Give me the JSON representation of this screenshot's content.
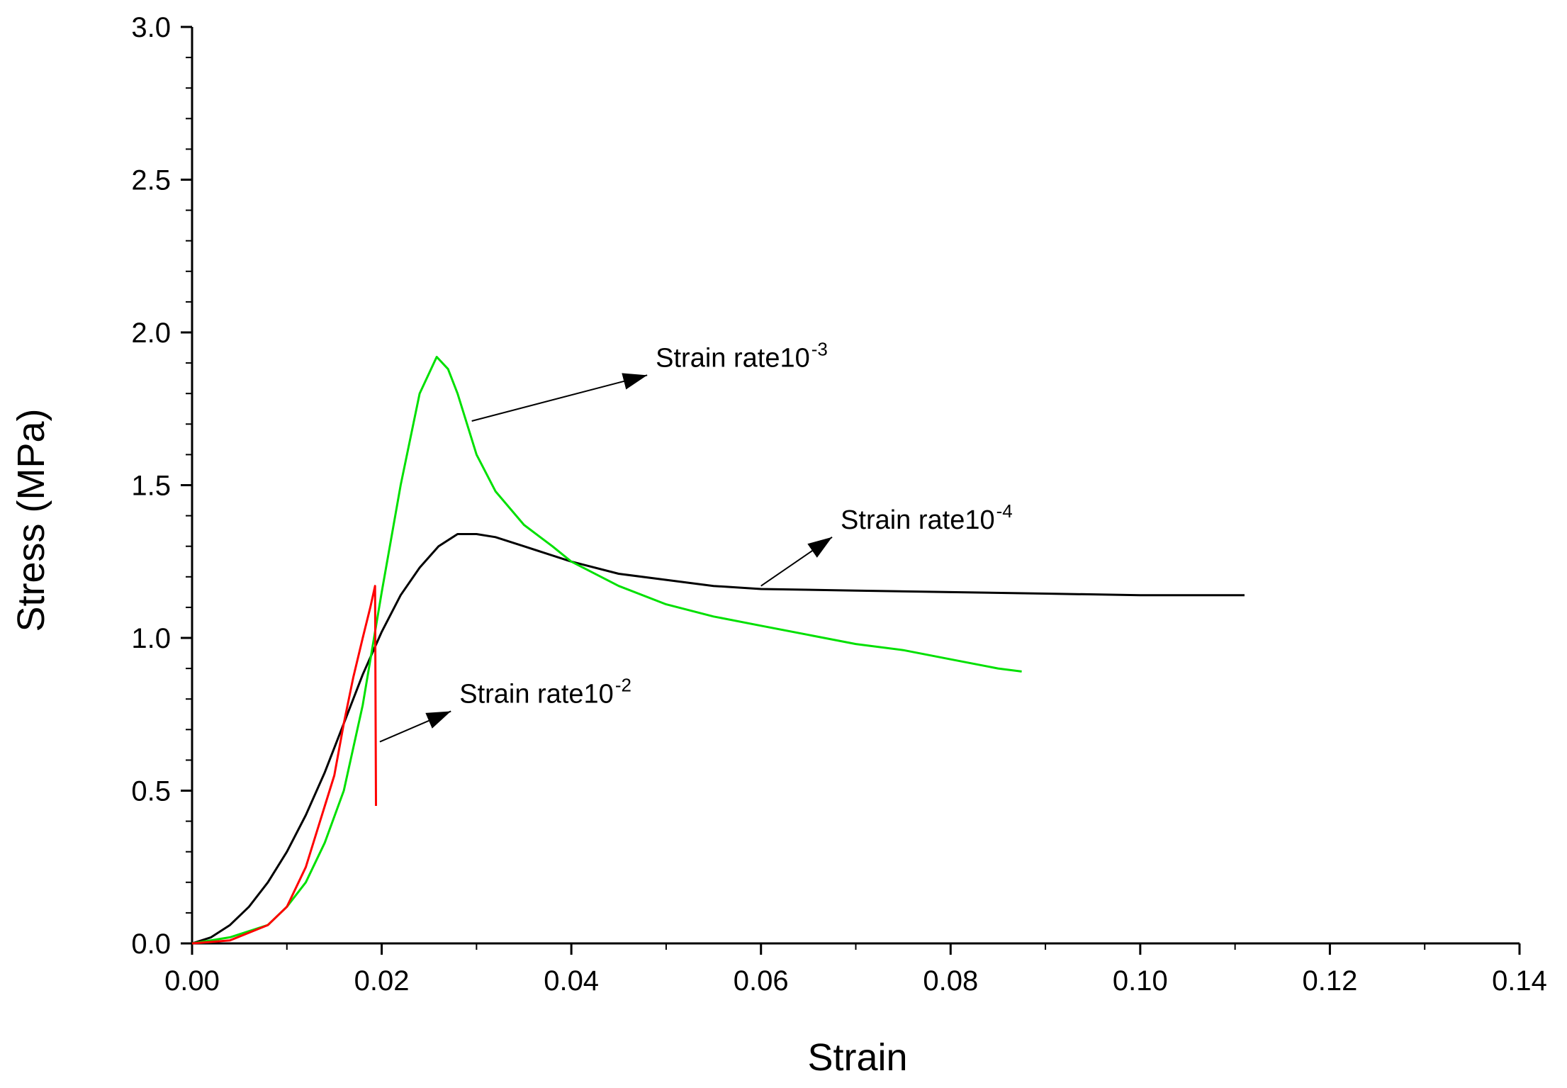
{
  "chart_data": {
    "type": "line",
    "title": "",
    "xlabel": "Strain",
    "ylabel": "Stress (MPa)",
    "xlim": [
      0,
      0.14
    ],
    "ylim": [
      0,
      3.0
    ],
    "grid": false,
    "x_ticks": [
      "0.00",
      "0.02",
      "0.04",
      "0.06",
      "0.08",
      "0.10",
      "0.12",
      "0.14"
    ],
    "y_ticks": [
      "0.0",
      "0.5",
      "1.0",
      "1.5",
      "2.0",
      "2.5",
      "3.0"
    ],
    "x_tick_values": [
      0,
      0.02,
      0.04,
      0.06,
      0.08,
      0.1,
      0.12,
      0.14
    ],
    "y_tick_values": [
      0,
      0.5,
      1.0,
      1.5,
      2.0,
      2.5,
      3.0
    ],
    "series": [
      {
        "color": "#ff0000",
        "points": [
          [
            0,
            0
          ],
          [
            0.004,
            0.01
          ],
          [
            0.008,
            0.06
          ],
          [
            0.01,
            0.12
          ],
          [
            0.012,
            0.25
          ],
          [
            0.014,
            0.45
          ],
          [
            0.015,
            0.55
          ],
          [
            0.016,
            0.72
          ],
          [
            0.017,
            0.87
          ],
          [
            0.018,
            1.0
          ],
          [
            0.0188,
            1.1
          ],
          [
            0.0193,
            1.17
          ],
          [
            0.0194,
            0.45
          ]
        ]
      },
      {
        "color": "#00e000",
        "points": [
          [
            0,
            0
          ],
          [
            0.004,
            0.02
          ],
          [
            0.008,
            0.06
          ],
          [
            0.01,
            0.12
          ],
          [
            0.012,
            0.2
          ],
          [
            0.014,
            0.33
          ],
          [
            0.016,
            0.5
          ],
          [
            0.018,
            0.78
          ],
          [
            0.02,
            1.15
          ],
          [
            0.022,
            1.5
          ],
          [
            0.024,
            1.8
          ],
          [
            0.0258,
            1.92
          ],
          [
            0.027,
            1.88
          ],
          [
            0.028,
            1.8
          ],
          [
            0.03,
            1.6
          ],
          [
            0.032,
            1.48
          ],
          [
            0.035,
            1.37
          ],
          [
            0.038,
            1.3
          ],
          [
            0.04,
            1.25
          ],
          [
            0.045,
            1.17
          ],
          [
            0.05,
            1.11
          ],
          [
            0.055,
            1.07
          ],
          [
            0.06,
            1.04
          ],
          [
            0.065,
            1.01
          ],
          [
            0.07,
            0.98
          ],
          [
            0.075,
            0.96
          ],
          [
            0.08,
            0.93
          ],
          [
            0.085,
            0.9
          ],
          [
            0.0875,
            0.89
          ]
        ]
      },
      {
        "color": "#000000",
        "points": [
          [
            0,
            0
          ],
          [
            0.002,
            0.02
          ],
          [
            0.004,
            0.06
          ],
          [
            0.006,
            0.12
          ],
          [
            0.008,
            0.2
          ],
          [
            0.01,
            0.3
          ],
          [
            0.012,
            0.42
          ],
          [
            0.014,
            0.56
          ],
          [
            0.016,
            0.72
          ],
          [
            0.018,
            0.88
          ],
          [
            0.02,
            1.02
          ],
          [
            0.022,
            1.14
          ],
          [
            0.024,
            1.23
          ],
          [
            0.026,
            1.3
          ],
          [
            0.028,
            1.34
          ],
          [
            0.03,
            1.34
          ],
          [
            0.032,
            1.33
          ],
          [
            0.035,
            1.3
          ],
          [
            0.04,
            1.25
          ],
          [
            0.045,
            1.21
          ],
          [
            0.05,
            1.19
          ],
          [
            0.055,
            1.17
          ],
          [
            0.06,
            1.16
          ],
          [
            0.07,
            1.155
          ],
          [
            0.08,
            1.15
          ],
          [
            0.09,
            1.145
          ],
          [
            0.1,
            1.14
          ],
          [
            0.111,
            1.14
          ]
        ]
      }
    ],
    "annotations": [
      {
        "label": "Strain rate10",
        "sup": "-3",
        "arrow_from": [
          0.0295,
          1.71
        ],
        "arrow_to": [
          0.048,
          1.86
        ]
      },
      {
        "label": "Strain rate10",
        "sup": "-4",
        "arrow_from": [
          0.06,
          1.17
        ],
        "arrow_to": [
          0.0675,
          1.33
        ]
      },
      {
        "label": "Strain rate10",
        "sup": "-2",
        "arrow_from": [
          0.0198,
          0.66
        ],
        "arrow_to": [
          0.0273,
          0.76
        ]
      }
    ]
  }
}
